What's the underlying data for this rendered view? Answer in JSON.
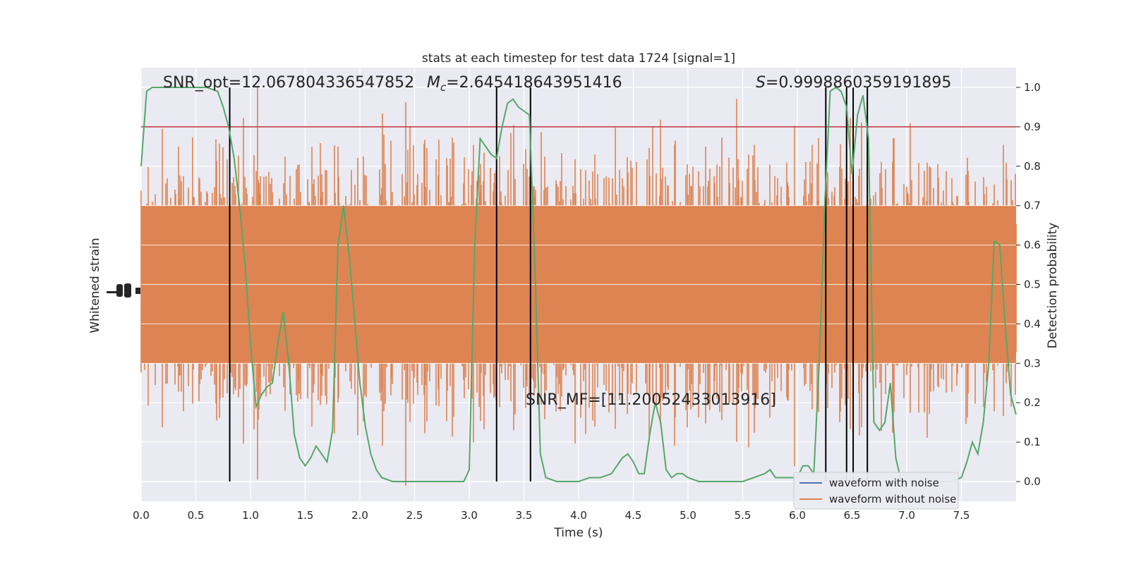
{
  "chart_data": {
    "type": "line",
    "title": "stats at each timestep for test data 1724 [signal=1]",
    "xlabel": "Time (s)",
    "ylabel_left": "Whitened strain",
    "ylabel_right": "Detection probability",
    "xlim": [
      0.0,
      8.0
    ],
    "ylim_right": [
      -0.05,
      1.05
    ],
    "x_ticks": [
      0.0,
      0.5,
      1.0,
      1.5,
      2.0,
      2.5,
      3.0,
      3.5,
      4.0,
      4.5,
      5.0,
      5.5,
      6.0,
      6.5,
      7.0,
      7.5
    ],
    "x_tick_labels": [
      "0.0",
      "0.5",
      "1.0",
      "1.5",
      "2.0",
      "2.5",
      "3.0",
      "3.5",
      "4.0",
      "4.5",
      "5.0",
      "5.5",
      "6.0",
      "6.5",
      "7.0",
      "7.5"
    ],
    "y_right_ticks": [
      0.0,
      0.1,
      0.2,
      0.3,
      0.4,
      0.5,
      0.6,
      0.7,
      0.8,
      0.9,
      1.0
    ],
    "y_right_tick_labels": [
      "0.0",
      "0.1",
      "0.2",
      "0.3",
      "0.4",
      "0.5",
      "0.6",
      "0.7",
      "0.8",
      "0.9",
      "1.0"
    ],
    "grid": true,
    "legend_placement": "bottom-right",
    "colors": {
      "plot_bg": "#eaeaf2",
      "grid": "#ffffff",
      "noise": "#dd8452",
      "without_noise": "#dd8452",
      "with_noise_legend": "#4c72b0",
      "probability": "#55a868",
      "threshold": "#c44e52",
      "markers": "#000000"
    },
    "annotations": {
      "snr_opt": "SNR_opt=12.067804336547852",
      "mc_symbol": "M",
      "mc_sub": "c",
      "mc_value": "=2.645418643951416",
      "s_symbol": "S",
      "s_value": "=0.9998860359191895",
      "snr_mf": "SNR_MF=[11.20052433013916]"
    },
    "legend": [
      {
        "label": "waveform with noise",
        "color": "#4c72b0"
      },
      {
        "label": "waveform without noise",
        "color": "#dd8452"
      }
    ],
    "threshold": 0.9,
    "detection_markers": [
      0.81,
      3.25,
      3.56,
      6.26,
      6.45,
      6.51,
      6.64
    ],
    "detection_probability": {
      "x": [
        0.0,
        0.05,
        0.1,
        0.2,
        0.3,
        0.4,
        0.5,
        0.6,
        0.7,
        0.75,
        0.8,
        0.85,
        0.9,
        0.95,
        1.0,
        1.05,
        1.1,
        1.15,
        1.2,
        1.25,
        1.3,
        1.35,
        1.4,
        1.45,
        1.5,
        1.55,
        1.6,
        1.65,
        1.7,
        1.75,
        1.8,
        1.85,
        1.9,
        1.95,
        2.0,
        2.05,
        2.1,
        2.15,
        2.2,
        2.3,
        2.4,
        2.5,
        2.6,
        2.7,
        2.8,
        2.9,
        2.95,
        3.0,
        3.05,
        3.1,
        3.15,
        3.2,
        3.25,
        3.3,
        3.35,
        3.4,
        3.45,
        3.5,
        3.55,
        3.6,
        3.65,
        3.7,
        3.8,
        3.9,
        4.0,
        4.1,
        4.2,
        4.3,
        4.4,
        4.45,
        4.5,
        4.55,
        4.6,
        4.65,
        4.7,
        4.75,
        4.8,
        4.85,
        4.9,
        4.95,
        5.0,
        5.1,
        5.2,
        5.3,
        5.4,
        5.5,
        5.6,
        5.7,
        5.75,
        5.8,
        5.85,
        5.9,
        6.0,
        6.05,
        6.1,
        6.15,
        6.2,
        6.25,
        6.3,
        6.35,
        6.4,
        6.45,
        6.5,
        6.55,
        6.6,
        6.65,
        6.7,
        6.75,
        6.8,
        6.85,
        6.9,
        6.95,
        7.0,
        7.1,
        7.2,
        7.3,
        7.4,
        7.5,
        7.55,
        7.6,
        7.65,
        7.7,
        7.75,
        7.8,
        7.85,
        7.9,
        7.95,
        8.0
      ],
      "y": [
        0.8,
        0.99,
        1.0,
        1.0,
        1.0,
        1.0,
        1.0,
        1.0,
        0.99,
        0.95,
        0.9,
        0.82,
        0.7,
        0.55,
        0.35,
        0.19,
        0.22,
        0.24,
        0.25,
        0.35,
        0.43,
        0.3,
        0.12,
        0.06,
        0.04,
        0.06,
        0.09,
        0.07,
        0.05,
        0.13,
        0.6,
        0.7,
        0.58,
        0.42,
        0.25,
        0.14,
        0.07,
        0.03,
        0.01,
        0.0,
        0.0,
        0.0,
        0.0,
        0.0,
        0.0,
        0.0,
        0.0,
        0.03,
        0.6,
        0.87,
        0.85,
        0.83,
        0.82,
        0.9,
        0.96,
        0.97,
        0.95,
        0.94,
        0.93,
        0.55,
        0.07,
        0.01,
        0.0,
        0.0,
        0.0,
        0.01,
        0.01,
        0.02,
        0.06,
        0.07,
        0.05,
        0.02,
        0.02,
        0.12,
        0.2,
        0.15,
        0.03,
        0.01,
        0.02,
        0.02,
        0.01,
        0.0,
        0.0,
        0.0,
        0.0,
        0.0,
        0.01,
        0.02,
        0.03,
        0.01,
        0.01,
        0.01,
        0.01,
        0.04,
        0.04,
        0.02,
        0.3,
        0.7,
        0.99,
        1.0,
        0.99,
        0.95,
        0.78,
        0.93,
        0.98,
        0.87,
        0.15,
        0.13,
        0.15,
        0.25,
        0.06,
        0.0,
        0.0,
        0.0,
        0.0,
        0.0,
        0.0,
        0.01,
        0.05,
        0.1,
        0.07,
        0.15,
        0.3,
        0.61,
        0.6,
        0.4,
        0.22,
        0.17
      ]
    }
  }
}
